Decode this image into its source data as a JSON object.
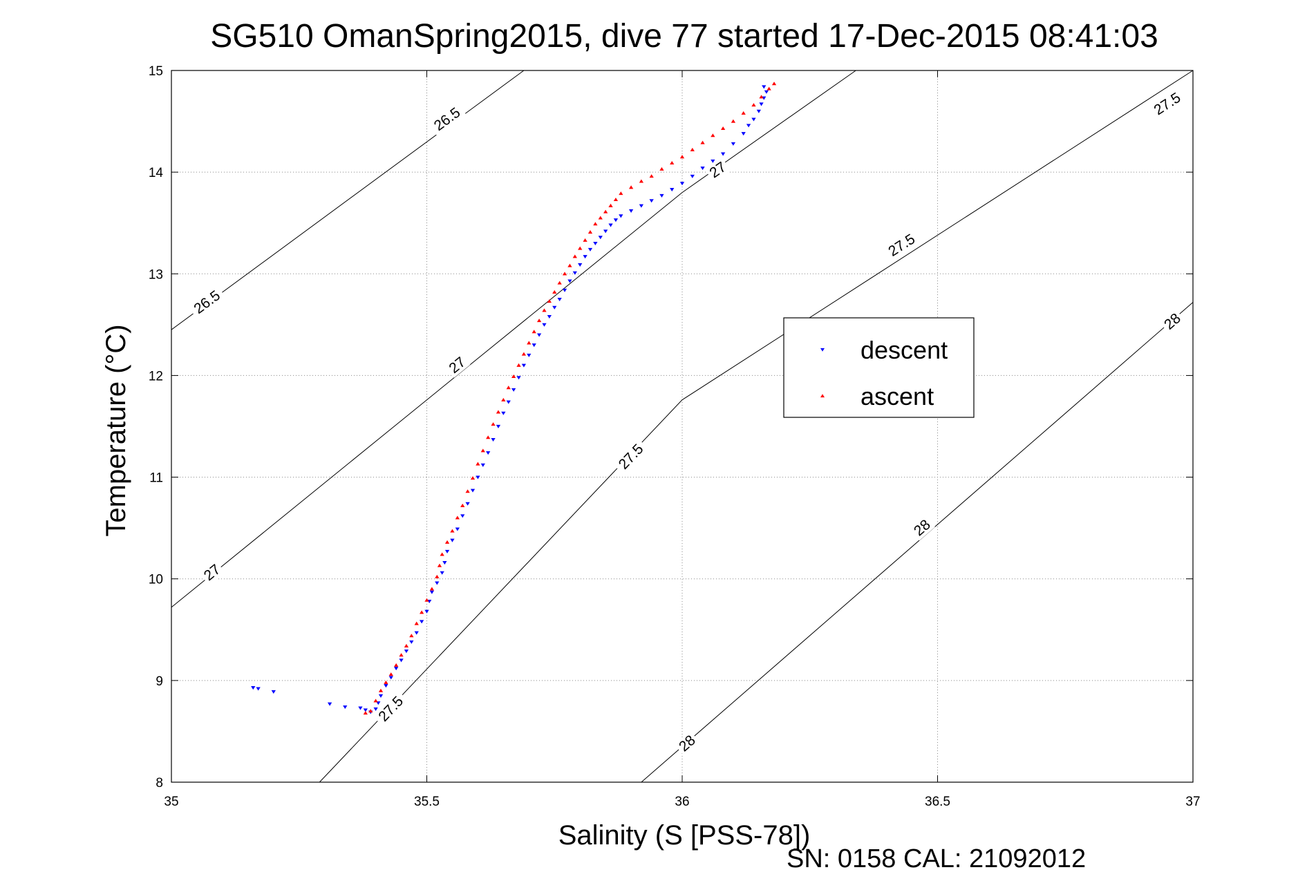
{
  "chart_data": {
    "type": "scatter",
    "title": "SG510 OmanSpring2015, dive 77 started 17-Dec-2015 08:41:03",
    "xlabel": "Salinity (S [PSS-78])",
    "ylabel": "Temperature (°C)",
    "xlim": [
      35,
      37
    ],
    "ylim": [
      8,
      15
    ],
    "x_ticks": [
      "35",
      "35.5",
      "36",
      "36.5",
      "37"
    ],
    "y_ticks": [
      "8",
      "9",
      "10",
      "11",
      "12",
      "13",
      "14",
      "15"
    ],
    "grid": true,
    "legend_position": "right",
    "footer": "SN: 0158  CAL: 21092012",
    "series": [
      {
        "name": "descent",
        "color": "#0000ff",
        "marker": "triangle-down",
        "points": [
          [
            35.16,
            8.93
          ],
          [
            35.17,
            8.92
          ],
          [
            35.2,
            8.89
          ],
          [
            35.31,
            8.77
          ],
          [
            35.34,
            8.74
          ],
          [
            35.37,
            8.73
          ],
          [
            35.38,
            8.71
          ],
          [
            35.39,
            8.69
          ],
          [
            35.4,
            8.72
          ],
          [
            35.405,
            8.78
          ],
          [
            35.41,
            8.85
          ],
          [
            35.42,
            8.95
          ],
          [
            35.43,
            9.03
          ],
          [
            35.44,
            9.12
          ],
          [
            35.45,
            9.2
          ],
          [
            35.46,
            9.29
          ],
          [
            35.47,
            9.38
          ],
          [
            35.48,
            9.47
          ],
          [
            35.49,
            9.58
          ],
          [
            35.5,
            9.68
          ],
          [
            35.505,
            9.78
          ],
          [
            35.51,
            9.87
          ],
          [
            35.52,
            9.96
          ],
          [
            35.53,
            10.06
          ],
          [
            35.535,
            10.16
          ],
          [
            35.54,
            10.27
          ],
          [
            35.55,
            10.38
          ],
          [
            35.56,
            10.49
          ],
          [
            35.57,
            10.62
          ],
          [
            35.58,
            10.74
          ],
          [
            35.59,
            10.87
          ],
          [
            35.6,
            11.0
          ],
          [
            35.61,
            11.12
          ],
          [
            35.62,
            11.24
          ],
          [
            35.63,
            11.37
          ],
          [
            35.64,
            11.5
          ],
          [
            35.65,
            11.63
          ],
          [
            35.66,
            11.74
          ],
          [
            35.67,
            11.86
          ],
          [
            35.68,
            11.98
          ],
          [
            35.69,
            12.1
          ],
          [
            35.7,
            12.2
          ],
          [
            35.71,
            12.3
          ],
          [
            35.72,
            12.4
          ],
          [
            35.73,
            12.5
          ],
          [
            35.74,
            12.58
          ],
          [
            35.75,
            12.67
          ],
          [
            35.76,
            12.75
          ],
          [
            35.77,
            12.84
          ],
          [
            35.78,
            12.93
          ],
          [
            35.79,
            13.01
          ],
          [
            35.8,
            13.09
          ],
          [
            35.81,
            13.17
          ],
          [
            35.82,
            13.24
          ],
          [
            35.83,
            13.3
          ],
          [
            35.84,
            13.36
          ],
          [
            35.85,
            13.42
          ],
          [
            35.86,
            13.48
          ],
          [
            35.87,
            13.53
          ],
          [
            35.88,
            13.57
          ],
          [
            35.9,
            13.62
          ],
          [
            35.92,
            13.67
          ],
          [
            35.94,
            13.72
          ],
          [
            35.96,
            13.77
          ],
          [
            35.98,
            13.83
          ],
          [
            36.0,
            13.89
          ],
          [
            36.02,
            13.96
          ],
          [
            36.04,
            14.04
          ],
          [
            36.06,
            14.11
          ],
          [
            36.08,
            14.18
          ],
          [
            36.1,
            14.28
          ],
          [
            36.12,
            14.38
          ],
          [
            36.13,
            14.46
          ],
          [
            36.14,
            14.52
          ],
          [
            36.15,
            14.6
          ],
          [
            36.155,
            14.67
          ],
          [
            36.16,
            14.73
          ],
          [
            36.165,
            14.79
          ],
          [
            36.16,
            14.84
          ]
        ]
      },
      {
        "name": "ascent",
        "color": "#ff0000",
        "marker": "triangle-up",
        "points": [
          [
            35.38,
            8.68
          ],
          [
            35.39,
            8.7
          ],
          [
            35.4,
            8.8
          ],
          [
            35.41,
            8.9
          ],
          [
            35.42,
            8.98
          ],
          [
            35.43,
            9.06
          ],
          [
            35.44,
            9.15
          ],
          [
            35.45,
            9.25
          ],
          [
            35.46,
            9.34
          ],
          [
            35.47,
            9.44
          ],
          [
            35.48,
            9.56
          ],
          [
            35.49,
            9.67
          ],
          [
            35.5,
            9.79
          ],
          [
            35.51,
            9.9
          ],
          [
            35.52,
            10.02
          ],
          [
            35.525,
            10.13
          ],
          [
            35.53,
            10.24
          ],
          [
            35.54,
            10.36
          ],
          [
            35.55,
            10.47
          ],
          [
            35.56,
            10.6
          ],
          [
            35.57,
            10.72
          ],
          [
            35.58,
            10.86
          ],
          [
            35.59,
            10.99
          ],
          [
            35.6,
            11.13
          ],
          [
            35.61,
            11.26
          ],
          [
            35.62,
            11.39
          ],
          [
            35.63,
            11.52
          ],
          [
            35.64,
            11.64
          ],
          [
            35.65,
            11.76
          ],
          [
            35.66,
            11.88
          ],
          [
            35.67,
            11.99
          ],
          [
            35.68,
            12.1
          ],
          [
            35.69,
            12.21
          ],
          [
            35.7,
            12.32
          ],
          [
            35.71,
            12.43
          ],
          [
            35.72,
            12.54
          ],
          [
            35.73,
            12.64
          ],
          [
            35.74,
            12.73
          ],
          [
            35.75,
            12.82
          ],
          [
            35.76,
            12.91
          ],
          [
            35.77,
            13.0
          ],
          [
            35.78,
            13.08
          ],
          [
            35.79,
            13.17
          ],
          [
            35.8,
            13.25
          ],
          [
            35.81,
            13.33
          ],
          [
            35.82,
            13.41
          ],
          [
            35.83,
            13.49
          ],
          [
            35.84,
            13.55
          ],
          [
            35.85,
            13.61
          ],
          [
            35.86,
            13.67
          ],
          [
            35.87,
            13.73
          ],
          [
            35.88,
            13.79
          ],
          [
            35.9,
            13.85
          ],
          [
            35.92,
            13.91
          ],
          [
            35.94,
            13.96
          ],
          [
            35.96,
            14.03
          ],
          [
            35.98,
            14.09
          ],
          [
            36.0,
            14.15
          ],
          [
            36.02,
            14.22
          ],
          [
            36.04,
            14.29
          ],
          [
            36.06,
            14.36
          ],
          [
            36.08,
            14.43
          ],
          [
            36.1,
            14.5
          ],
          [
            36.12,
            14.58
          ],
          [
            36.14,
            14.66
          ],
          [
            36.155,
            14.74
          ],
          [
            36.17,
            14.82
          ],
          [
            36.18,
            14.87
          ]
        ]
      }
    ],
    "contours": [
      {
        "label": "26.5",
        "points": [
          [
            35.0,
            12.45
          ],
          [
            35.69,
            15.0
          ]
        ],
        "labels_at": [
          [
            35.07,
            12.72
          ],
          [
            35.54,
            14.52
          ]
        ]
      },
      {
        "label": "27",
        "points": [
          [
            35.0,
            9.72
          ],
          [
            36.0,
            13.8
          ],
          [
            36.34,
            15.0
          ]
        ],
        "labels_at": [
          [
            35.08,
            10.06
          ],
          [
            35.56,
            12.1
          ],
          [
            36.07,
            14.02
          ]
        ]
      },
      {
        "label": "27.5",
        "points": [
          [
            35.29,
            8.0
          ],
          [
            36.0,
            11.76
          ],
          [
            37.0,
            15.0
          ]
        ],
        "labels_at": [
          [
            35.43,
            8.72
          ],
          [
            35.9,
            11.2
          ],
          [
            36.43,
            13.28
          ],
          [
            36.95,
            14.67
          ]
        ]
      },
      {
        "label": "28",
        "points": [
          [
            35.92,
            8.0
          ],
          [
            37.0,
            12.72
          ]
        ],
        "labels_at": [
          [
            36.01,
            8.38
          ],
          [
            36.47,
            10.5
          ],
          [
            36.96,
            12.53
          ]
        ]
      }
    ]
  }
}
